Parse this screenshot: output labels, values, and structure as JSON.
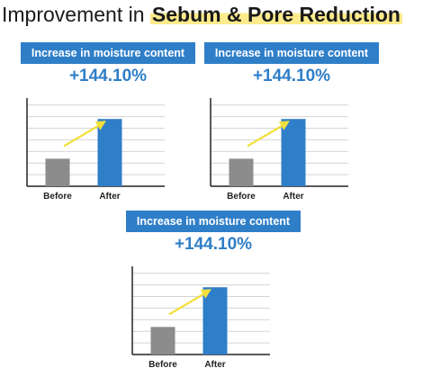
{
  "title": {
    "prefix": "Improvement in ",
    "highlight": "Sebum & Pore Reduction"
  },
  "panels": [
    {
      "badge": "Increase in moisture content",
      "value": "+144.10%"
    },
    {
      "badge": "Increase in moisture content",
      "value": "+144.10%"
    },
    {
      "badge": "Increase in moisture content",
      "value": "+144.10%"
    }
  ],
  "colors": {
    "accent": "#2f7ec8",
    "before_bar": "#8c8c8c",
    "after_bar": "#2f7ec8",
    "arrow": "#f2e03c",
    "highlight": "#fdeb8c"
  },
  "chart_data": [
    {
      "type": "bar",
      "categories": [
        "Before",
        "After"
      ],
      "values": [
        1,
        2.441
      ],
      "ylim": [
        0,
        3.2
      ],
      "grid": true,
      "annotation": "+144.10%"
    },
    {
      "type": "bar",
      "categories": [
        "Before",
        "After"
      ],
      "values": [
        1,
        2.441
      ],
      "ylim": [
        0,
        3.2
      ],
      "grid": true,
      "annotation": "+144.10%"
    },
    {
      "type": "bar",
      "categories": [
        "Before",
        "After"
      ],
      "values": [
        1,
        2.441
      ],
      "ylim": [
        0,
        3.2
      ],
      "grid": true,
      "annotation": "+144.10%"
    }
  ]
}
